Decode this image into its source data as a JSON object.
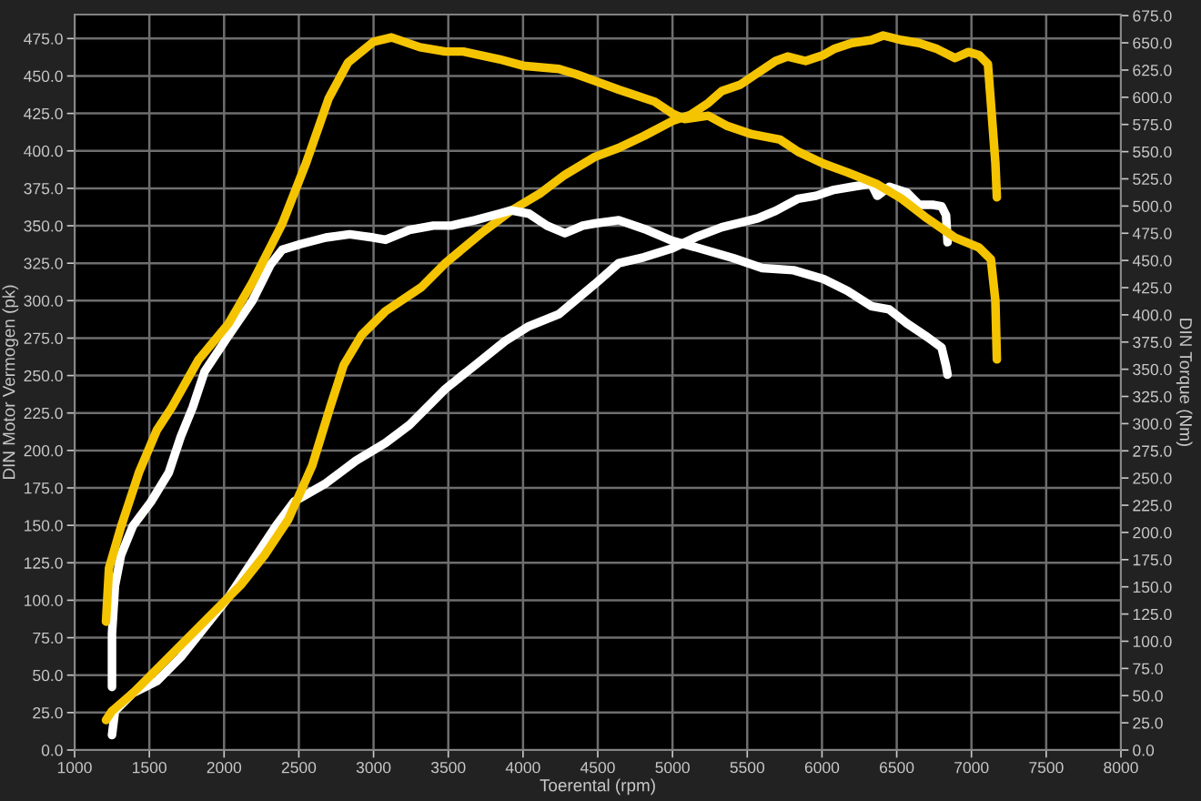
{
  "chart_data": {
    "type": "line",
    "xlabel": "Toerental (rpm)",
    "ylabel": "DIN Motor Vermogen (pk)",
    "y2label": "DIN Torque (Nm)",
    "xlim": [
      1000,
      8000
    ],
    "xticks": [
      1000,
      1500,
      2000,
      2500,
      3000,
      3500,
      4000,
      4500,
      5000,
      5500,
      6000,
      6500,
      7000,
      7500,
      8000
    ],
    "ylim": [
      0,
      491
    ],
    "yticks": [
      {
        "value": 0,
        "label": "0.0"
      },
      {
        "value": 25,
        "label": "25.0"
      },
      {
        "value": 50,
        "label": "50.0"
      },
      {
        "value": 75,
        "label": "75.0"
      },
      {
        "value": 100,
        "label": "100.0"
      },
      {
        "value": 125,
        "label": "125.0"
      },
      {
        "value": 150,
        "label": "150.0"
      },
      {
        "value": 175,
        "label": "175.0"
      },
      {
        "value": 200,
        "label": "200.0"
      },
      {
        "value": 225,
        "label": "225.0"
      },
      {
        "value": 250,
        "label": "250.0"
      },
      {
        "value": 275,
        "label": "275.0"
      },
      {
        "value": 300,
        "label": "300.0"
      },
      {
        "value": 325,
        "label": "325.0"
      },
      {
        "value": 350,
        "label": "350.0"
      },
      {
        "value": 375,
        "label": "375.0"
      },
      {
        "value": 400,
        "label": "400.0"
      },
      {
        "value": 425,
        "label": "425.0"
      },
      {
        "value": 450,
        "label": "450.0"
      },
      {
        "value": 475,
        "label": "475.0"
      }
    ],
    "y2lim": [
      0,
      676
    ],
    "y2ticks": [
      {
        "value": 0,
        "label": "0.0"
      },
      {
        "value": 25,
        "label": "25.0"
      },
      {
        "value": 50,
        "label": "50.0"
      },
      {
        "value": 75,
        "label": "75.0"
      },
      {
        "value": 100,
        "label": "100.0"
      },
      {
        "value": 125,
        "label": "125.0"
      },
      {
        "value": 150,
        "label": "150.0"
      },
      {
        "value": 175,
        "label": "175.0"
      },
      {
        "value": 200,
        "label": "200.0"
      },
      {
        "value": 225,
        "label": "225.0"
      },
      {
        "value": 250,
        "label": "250.0"
      },
      {
        "value": 275,
        "label": "275.0"
      },
      {
        "value": 300,
        "label": "300.0"
      },
      {
        "value": 325,
        "label": "325.0"
      },
      {
        "value": 350,
        "label": "350.0"
      },
      {
        "value": 375,
        "label": "375.0"
      },
      {
        "value": 400,
        "label": "400.0"
      },
      {
        "value": 425,
        "label": "425.0"
      },
      {
        "value": 450,
        "label": "450.0"
      },
      {
        "value": 475,
        "label": "475.0"
      },
      {
        "value": 500,
        "label": "500.0"
      },
      {
        "value": 525,
        "label": "525.0"
      },
      {
        "value": 550,
        "label": "550.0"
      },
      {
        "value": 575,
        "label": "575.0"
      },
      {
        "value": 600,
        "label": "600.0"
      },
      {
        "value": 625,
        "label": "625.0"
      },
      {
        "value": 650,
        "label": "650.0"
      },
      {
        "value": 675,
        "label": "675.0"
      }
    ],
    "grid": true,
    "series": [
      {
        "color": "#ffffff",
        "axis": "y2",
        "x": [
          1250,
          1250,
          1270,
          1310,
          1390,
          1510,
          1630,
          1710,
          1790,
          1870,
          2030,
          2190,
          2310,
          2390,
          2510,
          2680,
          2840,
          3000,
          3080,
          3240,
          3400,
          3520,
          3680,
          3840,
          3920,
          4040,
          4160,
          4280,
          4400,
          4480,
          4640,
          4810,
          5000,
          5210,
          5410,
          5600,
          5810,
          6010,
          6170,
          6330,
          6450,
          6570,
          6690,
          6800,
          6830,
          6840
        ],
        "values": [
          58,
          107,
          151,
          179,
          206,
          228,
          255,
          288,
          315,
          348,
          381,
          413,
          446,
          460,
          465,
          471,
          474,
          471,
          469,
          478,
          482,
          482,
          487,
          493,
          496,
          493,
          482,
          475,
          482,
          484,
          487,
          479,
          468,
          460,
          452,
          443,
          441,
          433,
          422,
          408,
          405,
          392,
          381,
          370,
          353,
          345
        ]
      },
      {
        "color": "#ffffff",
        "x": [
          1250,
          1270,
          1390,
          1550,
          1710,
          1870,
          2030,
          2190,
          2350,
          2470,
          2680,
          2880,
          3080,
          3240,
          3360,
          3480,
          3680,
          3880,
          4040,
          4240,
          4360,
          4480,
          4640,
          4810,
          5000,
          5170,
          5330,
          5450,
          5570,
          5690,
          5840,
          5960,
          6080,
          6200,
          6330,
          6370,
          6450,
          6570,
          6650,
          6740,
          6800,
          6830,
          6840
        ],
        "values": [
          10,
          26,
          38,
          46,
          62,
          82,
          102,
          126,
          150,
          166,
          178,
          193,
          205,
          217,
          229,
          241,
          257,
          273,
          283,
          291,
          301,
          311,
          325,
          329,
          335,
          343,
          349,
          352,
          355,
          360,
          368,
          370,
          374,
          376,
          378,
          370,
          376,
          372,
          364,
          364,
          363,
          357,
          339
        ]
      },
      {
        "color": "#f5c400",
        "axis": "y2",
        "x": [
          1210,
          1230,
          1310,
          1430,
          1550,
          1650,
          1830,
          2030,
          2190,
          2390,
          2550,
          2700,
          2830,
          3000,
          3120,
          3310,
          3480,
          3600,
          3840,
          4000,
          4240,
          4360,
          4480,
          4640,
          4880,
          5000,
          5080,
          5240,
          5360,
          5530,
          5720,
          5840,
          6010,
          6170,
          6370,
          6530,
          6690,
          6890,
          7050,
          7130,
          7160,
          7170
        ],
        "values": [
          118,
          167,
          205,
          255,
          294,
          315,
          359,
          392,
          430,
          484,
          540,
          599,
          632,
          651,
          655,
          646,
          642,
          642,
          635,
          629,
          626,
          621,
          615,
          607,
          596,
          585,
          580,
          583,
          574,
          566,
          561,
          550,
          539,
          531,
          520,
          507,
          490,
          471,
          462,
          451,
          413,
          359
        ]
      },
      {
        "color": "#f5c400",
        "x": [
          1210,
          1250,
          1390,
          1630,
          1870,
          2110,
          2270,
          2430,
          2590,
          2710,
          2800,
          2920,
          3080,
          3320,
          3480,
          3720,
          3920,
          4120,
          4280,
          4480,
          4640,
          4810,
          5000,
          5120,
          5240,
          5330,
          5450,
          5570,
          5690,
          5770,
          5890,
          6010,
          6080,
          6200,
          6330,
          6410,
          6530,
          6650,
          6770,
          6890,
          6980,
          7050,
          7110,
          7130,
          7160,
          7170
        ],
        "values": [
          20,
          26,
          38,
          62,
          86,
          110,
          130,
          154,
          190,
          229,
          257,
          277,
          293,
          309,
          325,
          345,
          360,
          372,
          384,
          396,
          402,
          410,
          420,
          424,
          432,
          440,
          444,
          452,
          460,
          463,
          460,
          464,
          468,
          472,
          474,
          477,
          474,
          472,
          468,
          462,
          466,
          464,
          458,
          432,
          392,
          369
        ]
      }
    ]
  }
}
